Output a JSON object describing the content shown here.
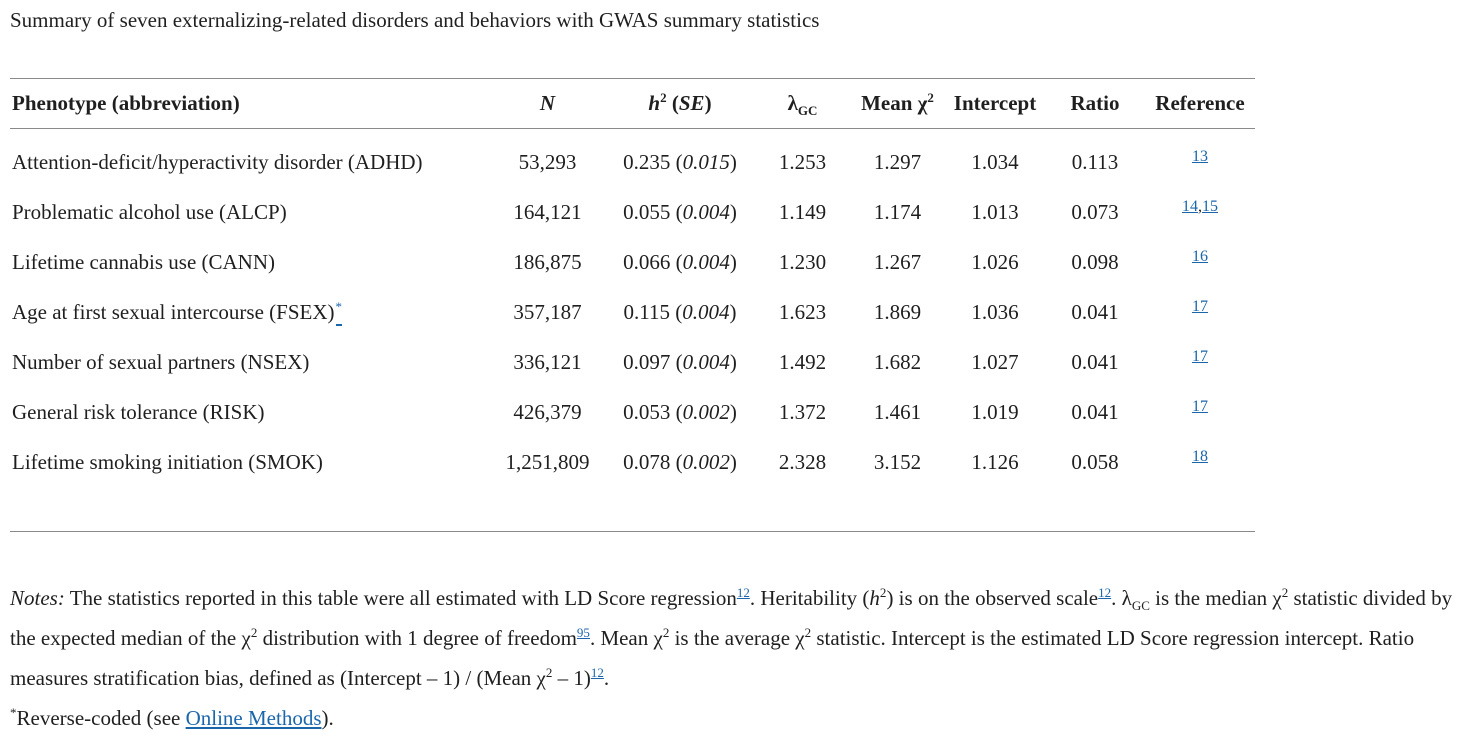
{
  "title": "Summary of seven externalizing-related disorders and behaviors with GWAS summary statistics",
  "colors": {
    "link_blue": "#1b66ab",
    "text": "#1f1f1f",
    "rule_gray": "#8a8a8a"
  },
  "table": {
    "headers": [
      {
        "key": "phenotype",
        "segments": [
          {
            "t": "text",
            "v": "Phenotype (abbreviation)"
          }
        ]
      },
      {
        "key": "n",
        "segments": [
          {
            "t": "i",
            "v": "N"
          }
        ]
      },
      {
        "key": "h2-se",
        "segments": [
          {
            "t": "i",
            "v": "h"
          },
          {
            "t": "sup",
            "v": "2"
          },
          {
            "t": "text",
            "v": " ("
          },
          {
            "t": "i",
            "v": "SE"
          },
          {
            "t": "text",
            "v": ")"
          }
        ]
      },
      {
        "key": "lambda-gc",
        "segments": [
          {
            "t": "text",
            "v": "λ"
          },
          {
            "t": "sub",
            "v": "GC"
          }
        ]
      },
      {
        "key": "mean-chi2",
        "segments": [
          {
            "t": "text",
            "v": "Mean χ"
          },
          {
            "t": "sup",
            "v": "2"
          }
        ]
      },
      {
        "key": "intercept",
        "segments": [
          {
            "t": "text",
            "v": "Intercept"
          }
        ]
      },
      {
        "key": "ratio",
        "segments": [
          {
            "t": "text",
            "v": "Ratio"
          }
        ]
      },
      {
        "key": "reference",
        "segments": [
          {
            "t": "text",
            "v": "Reference"
          }
        ]
      }
    ],
    "rows": [
      [
        "Attention-deficit/hyperactivity disorder (ADHD)",
        "53,293",
        [
          {
            "t": "text",
            "v": "0.235 ("
          },
          {
            "t": "i",
            "v": "0.015"
          },
          {
            "t": "text",
            "v": ")"
          }
        ],
        "1.253",
        "1.297",
        "1.034",
        "0.113",
        [
          {
            "t": "a",
            "v": "13"
          }
        ]
      ],
      [
        "Problematic alcohol use (ALCP)",
        "164,121",
        [
          {
            "t": "text",
            "v": "0.055 ("
          },
          {
            "t": "i",
            "v": "0.004"
          },
          {
            "t": "text",
            "v": ")"
          }
        ],
        "1.149",
        "1.174",
        "1.013",
        "0.073",
        [
          {
            "t": "a",
            "v": "14"
          },
          {
            "t": "text",
            "v": ","
          },
          {
            "t": "a",
            "v": "15"
          }
        ]
      ],
      [
        "Lifetime cannabis use (CANN)",
        "186,875",
        [
          {
            "t": "text",
            "v": "0.066 ("
          },
          {
            "t": "i",
            "v": "0.004"
          },
          {
            "t": "text",
            "v": ")"
          }
        ],
        "1.230",
        "1.267",
        "1.026",
        "0.098",
        [
          {
            "t": "a",
            "v": "16"
          }
        ]
      ],
      [
        [
          {
            "t": "text",
            "v": "Age at first sexual intercourse (FSEX)"
          },
          {
            "t": "asup",
            "v": "*"
          }
        ],
        "357,187",
        [
          {
            "t": "text",
            "v": "0.115 ("
          },
          {
            "t": "i",
            "v": "0.004"
          },
          {
            "t": "text",
            "v": ")"
          }
        ],
        "1.623",
        "1.869",
        "1.036",
        "0.041",
        [
          {
            "t": "a",
            "v": "17"
          }
        ]
      ],
      [
        "Number of sexual partners (NSEX)",
        "336,121",
        [
          {
            "t": "text",
            "v": "0.097 ("
          },
          {
            "t": "i",
            "v": "0.004"
          },
          {
            "t": "text",
            "v": ")"
          }
        ],
        "1.492",
        "1.682",
        "1.027",
        "0.041",
        [
          {
            "t": "a",
            "v": "17"
          }
        ]
      ],
      [
        "General risk tolerance (RISK)",
        "426,379",
        [
          {
            "t": "text",
            "v": "0.053 ("
          },
          {
            "t": "i",
            "v": "0.002"
          },
          {
            "t": "text",
            "v": ")"
          }
        ],
        "1.372",
        "1.461",
        "1.019",
        "0.041",
        [
          {
            "t": "a",
            "v": "17"
          }
        ]
      ],
      [
        "Lifetime smoking initiation (SMOK)",
        "1,251,809",
        [
          {
            "t": "text",
            "v": "0.078 ("
          },
          {
            "t": "i",
            "v": "0.002"
          },
          {
            "t": "text",
            "v": ")"
          }
        ],
        "2.328",
        "3.152",
        "1.126",
        "0.058",
        [
          {
            "t": "a",
            "v": "18"
          }
        ]
      ]
    ]
  },
  "notes": {
    "segments": [
      {
        "t": "i",
        "v": "Notes:"
      },
      {
        "t": "text",
        "v": " The statistics reported in this table were all estimated with LD Score regression"
      },
      {
        "t": "supa",
        "v": "12"
      },
      {
        "t": "text",
        "v": ". Heritability ("
      },
      {
        "t": "i",
        "v": "h"
      },
      {
        "t": "sup",
        "v": "2"
      },
      {
        "t": "text",
        "v": ") is on the observed scale"
      },
      {
        "t": "supa",
        "v": "12"
      },
      {
        "t": "text",
        "v": ". λ"
      },
      {
        "t": "sub",
        "v": "GC"
      },
      {
        "t": "text",
        "v": " is the median χ"
      },
      {
        "t": "sup",
        "v": "2"
      },
      {
        "t": "text",
        "v": " statistic divided by the expected median of the χ"
      },
      {
        "t": "sup",
        "v": "2"
      },
      {
        "t": "text",
        "v": " distribution with 1 degree of freedom"
      },
      {
        "t": "supa",
        "v": "95"
      },
      {
        "t": "text",
        "v": ". Mean χ"
      },
      {
        "t": "sup",
        "v": "2"
      },
      {
        "t": "text",
        "v": " is the average χ"
      },
      {
        "t": "sup",
        "v": "2"
      },
      {
        "t": "text",
        "v": " statistic. Intercept is the estimated LD Score regression intercept. Ratio measures stratification bias, defined as (Intercept – 1) / (Mean χ"
      },
      {
        "t": "sup",
        "v": "2"
      },
      {
        "t": "text",
        "v": " – 1)"
      },
      {
        "t": "supa",
        "v": "12"
      },
      {
        "t": "text",
        "v": "."
      }
    ]
  },
  "footnote": {
    "segments": [
      {
        "t": "sup",
        "v": "*"
      },
      {
        "t": "text",
        "v": "Reverse-coded (see "
      },
      {
        "t": "a",
        "v": "Online Methods",
        "n": "online-methods-link"
      },
      {
        "t": "text",
        "v": ")."
      }
    ]
  }
}
